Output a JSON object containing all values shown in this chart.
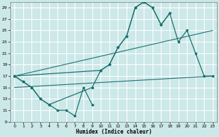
{
  "xlabel": "Humidex (Indice chaleur)",
  "bg_color": "#cce8e8",
  "grid_color": "#ffffff",
  "line_color": "#1a6e6e",
  "series1_x": [
    0,
    1,
    2,
    3,
    4,
    5,
    6,
    7,
    8,
    9
  ],
  "series1_y": [
    17,
    16,
    15,
    13,
    12,
    11,
    11,
    10,
    15,
    12
  ],
  "series2_x": [
    0,
    10,
    11,
    12,
    13,
    14,
    15,
    16,
    17,
    18
  ],
  "series2_y": [
    17,
    18,
    19,
    22,
    24,
    29,
    30,
    29,
    26,
    28
  ],
  "series3_x": [
    0,
    1,
    2,
    3,
    4,
    9,
    10,
    11,
    12,
    13,
    14,
    15,
    16,
    17,
    18,
    19,
    20,
    21,
    22,
    23
  ],
  "series3_y": [
    17,
    16,
    15,
    13,
    12,
    15,
    18,
    19,
    22,
    24,
    29,
    30,
    29,
    26,
    28,
    23,
    25,
    21,
    17,
    17
  ],
  "trend1_x": [
    0,
    23
  ],
  "trend1_y": [
    17,
    25
  ],
  "trend2_x": [
    0,
    23
  ],
  "trend2_y": [
    15,
    17
  ],
  "ylim": [
    9,
    30
  ],
  "yticks": [
    9,
    11,
    13,
    15,
    17,
    19,
    21,
    23,
    25,
    27,
    29
  ],
  "xlim": [
    -0.5,
    23.5
  ],
  "xticks": [
    0,
    1,
    2,
    3,
    4,
    5,
    6,
    7,
    8,
    9,
    10,
    11,
    12,
    13,
    14,
    15,
    16,
    17,
    18,
    19,
    20,
    21,
    22,
    23
  ]
}
